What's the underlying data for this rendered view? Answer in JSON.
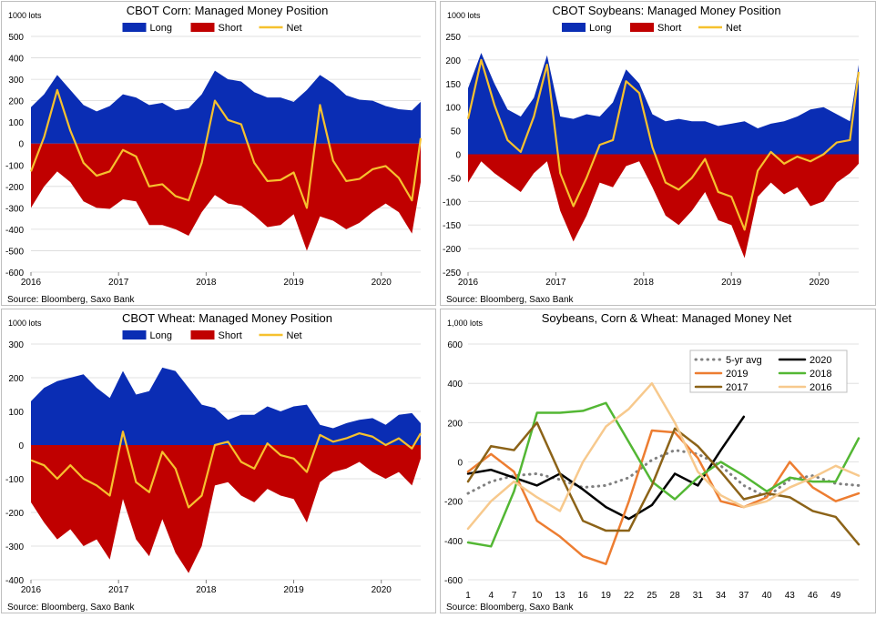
{
  "source_label": "Source: Bloomberg, Saxo Bank",
  "chart_data": [
    {
      "type": "area",
      "title": "CBOT Corn: Managed Money Position",
      "unit_label": "1000 lots",
      "ylim": [
        -600,
        500
      ],
      "yticks": [
        -600,
        -500,
        -400,
        -300,
        -200,
        -100,
        0,
        100,
        200,
        300,
        400,
        500
      ],
      "xlim": [
        2016.0,
        2020.45
      ],
      "xticks": [
        "2016",
        "2017",
        "2018",
        "2019",
        "2020"
      ],
      "legend": [
        "Long",
        "Short",
        "Net"
      ],
      "colors": {
        "long": "#0a2db4",
        "short": "#c00000",
        "net": "#f6c12e"
      },
      "x": [
        2016.0,
        2016.15,
        2016.3,
        2016.45,
        2016.6,
        2016.75,
        2016.9,
        2017.05,
        2017.2,
        2017.35,
        2017.5,
        2017.65,
        2017.8,
        2017.95,
        2018.1,
        2018.25,
        2018.4,
        2018.55,
        2018.7,
        2018.85,
        2019.0,
        2019.15,
        2019.3,
        2019.45,
        2019.6,
        2019.75,
        2019.9,
        2020.05,
        2020.2,
        2020.35,
        2020.45
      ],
      "series": [
        {
          "name": "Long",
          "values": [
            170,
            230,
            320,
            250,
            180,
            150,
            175,
            230,
            215,
            180,
            190,
            155,
            165,
            230,
            340,
            300,
            290,
            240,
            215,
            215,
            195,
            250,
            320,
            280,
            225,
            205,
            200,
            175,
            160,
            155,
            195
          ]
        },
        {
          "name": "Short",
          "values": [
            -300,
            -200,
            -130,
            -180,
            -270,
            -300,
            -305,
            -260,
            -270,
            -380,
            -380,
            -400,
            -430,
            -320,
            -240,
            -280,
            -290,
            -335,
            -390,
            -380,
            -330,
            -500,
            -340,
            -360,
            -400,
            -370,
            -320,
            -280,
            -320,
            -420,
            -180
          ]
        },
        {
          "name": "Net",
          "values": [
            -130,
            30,
            250,
            60,
            -90,
            -150,
            -130,
            -30,
            -60,
            -200,
            -190,
            -245,
            -265,
            -90,
            200,
            110,
            90,
            -90,
            -175,
            -170,
            -135,
            -300,
            180,
            -80,
            -175,
            -165,
            -120,
            -105,
            -160,
            -265,
            25
          ]
        }
      ]
    },
    {
      "type": "area",
      "title": "CBOT Soybeans: Managed Money Position",
      "unit_label": "1000 lots",
      "ylim": [
        -250,
        250
      ],
      "yticks": [
        -250,
        -200,
        -150,
        -100,
        -50,
        0,
        50,
        100,
        150,
        200,
        250
      ],
      "xlim": [
        2016.0,
        2020.45
      ],
      "xticks": [
        "2016",
        "2017",
        "2018",
        "2019",
        "2020"
      ],
      "legend": [
        "Long",
        "Short",
        "Net"
      ],
      "colors": {
        "long": "#0a2db4",
        "short": "#c00000",
        "net": "#f6c12e"
      },
      "x": [
        2016.0,
        2016.15,
        2016.3,
        2016.45,
        2016.6,
        2016.75,
        2016.9,
        2017.05,
        2017.2,
        2017.35,
        2017.5,
        2017.65,
        2017.8,
        2017.95,
        2018.1,
        2018.25,
        2018.4,
        2018.55,
        2018.7,
        2018.85,
        2019.0,
        2019.15,
        2019.3,
        2019.45,
        2019.6,
        2019.75,
        2019.9,
        2020.05,
        2020.2,
        2020.35,
        2020.45
      ],
      "series": [
        {
          "name": "Long",
          "values": [
            140,
            215,
            150,
            95,
            80,
            120,
            210,
            80,
            75,
            85,
            80,
            110,
            180,
            150,
            85,
            70,
            75,
            70,
            70,
            60,
            65,
            70,
            55,
            65,
            70,
            80,
            95,
            100,
            85,
            70,
            190
          ]
        },
        {
          "name": "Short",
          "values": [
            -60,
            -15,
            -40,
            -60,
            -80,
            -40,
            -15,
            -120,
            -185,
            -130,
            -60,
            -70,
            -25,
            -15,
            -70,
            -130,
            -150,
            -120,
            -80,
            -140,
            -150,
            -220,
            -90,
            -60,
            -85,
            -70,
            -110,
            -100,
            -60,
            -40,
            -20
          ]
        },
        {
          "name": "Net",
          "values": [
            75,
            200,
            105,
            30,
            5,
            80,
            190,
            -40,
            -110,
            -50,
            20,
            30,
            155,
            130,
            15,
            -60,
            -75,
            -50,
            -10,
            -80,
            -90,
            -160,
            -35,
            5,
            -20,
            -5,
            -15,
            0,
            25,
            30,
            175
          ]
        }
      ]
    },
    {
      "type": "area",
      "title": "CBOT Wheat: Managed Money Position",
      "unit_label": "1000 lots",
      "ylim": [
        -400,
        300
      ],
      "yticks": [
        -400,
        -300,
        -200,
        -100,
        0,
        100,
        200,
        300
      ],
      "xlim": [
        2016.0,
        2020.45
      ],
      "xticks": [
        "2016",
        "2017",
        "2018",
        "2019",
        "2020"
      ],
      "legend": [
        "Long",
        "Short",
        "Net"
      ],
      "colors": {
        "long": "#0a2db4",
        "short": "#c00000",
        "net": "#f6c12e"
      },
      "x": [
        2016.0,
        2016.15,
        2016.3,
        2016.45,
        2016.6,
        2016.75,
        2016.9,
        2017.05,
        2017.2,
        2017.35,
        2017.5,
        2017.65,
        2017.8,
        2017.95,
        2018.1,
        2018.25,
        2018.4,
        2018.55,
        2018.7,
        2018.85,
        2019.0,
        2019.15,
        2019.3,
        2019.45,
        2019.6,
        2019.75,
        2019.9,
        2020.05,
        2020.2,
        2020.35,
        2020.45
      ],
      "series": [
        {
          "name": "Long",
          "values": [
            130,
            170,
            190,
            200,
            210,
            170,
            140,
            220,
            150,
            160,
            230,
            220,
            170,
            120,
            110,
            75,
            90,
            90,
            115,
            100,
            115,
            120,
            60,
            50,
            65,
            75,
            80,
            60,
            90,
            95,
            65
          ]
        },
        {
          "name": "Short",
          "values": [
            -170,
            -230,
            -280,
            -250,
            -300,
            -280,
            -340,
            -160,
            -280,
            -330,
            -220,
            -320,
            -380,
            -300,
            -120,
            -110,
            -150,
            -170,
            -130,
            -150,
            -160,
            -230,
            -110,
            -80,
            -70,
            -50,
            -80,
            -100,
            -80,
            -120,
            -40
          ]
        },
        {
          "name": "Net",
          "values": [
            -45,
            -60,
            -100,
            -60,
            -100,
            -120,
            -150,
            40,
            -110,
            -140,
            -20,
            -70,
            -185,
            -150,
            0,
            10,
            -50,
            -70,
            5,
            -30,
            -40,
            -80,
            30,
            10,
            20,
            35,
            25,
            0,
            20,
            -10,
            35
          ]
        }
      ]
    },
    {
      "type": "line",
      "title": "Soybeans, Corn & Wheat: Managed Money Net",
      "unit_label": "1,000 lots",
      "ylim": [
        -600,
        600
      ],
      "yticks": [
        -600,
        -400,
        -200,
        0,
        200,
        400,
        600
      ],
      "xlim": [
        1,
        52
      ],
      "xticks": [
        "1",
        "4",
        "7",
        "10",
        "13",
        "16",
        "19",
        "22",
        "25",
        "28",
        "31",
        "34",
        "37",
        "40",
        "43",
        "46",
        "49"
      ],
      "x": [
        1,
        4,
        7,
        10,
        13,
        16,
        19,
        22,
        25,
        28,
        31,
        34,
        37,
        40,
        43,
        46,
        49,
        52
      ],
      "series": [
        {
          "name": "5-yr avg",
          "color": "#808080",
          "dashed": true,
          "values": [
            -160,
            -100,
            -70,
            -60,
            -90,
            -130,
            -120,
            -80,
            10,
            60,
            40,
            -20,
            -120,
            -180,
            -90,
            -70,
            -110,
            -120
          ]
        },
        {
          "name": "2020",
          "color": "#000000",
          "values": [
            -60,
            -40,
            -80,
            -120,
            -60,
            -140,
            -230,
            -290,
            -220,
            -60,
            -120,
            60,
            230,
            null,
            null,
            null,
            null,
            null
          ]
        },
        {
          "name": "2019",
          "color": "#ed7d31",
          "values": [
            -50,
            40,
            -50,
            -300,
            -380,
            -480,
            -520,
            -200,
            160,
            150,
            20,
            -200,
            -230,
            -180,
            0,
            -130,
            -200,
            -160
          ]
        },
        {
          "name": "2018",
          "color": "#53b734",
          "values": [
            -410,
            -430,
            -150,
            250,
            250,
            260,
            300,
            100,
            -100,
            -190,
            -80,
            0,
            -70,
            -150,
            -80,
            -100,
            -100,
            120
          ]
        },
        {
          "name": "2017",
          "color": "#8c6318",
          "values": [
            -100,
            80,
            60,
            200,
            -60,
            -300,
            -350,
            -350,
            -120,
            170,
            80,
            -50,
            -190,
            -160,
            -180,
            -250,
            -280,
            -420
          ]
        },
        {
          "name": "2016",
          "color": "#f7c98d",
          "values": [
            -340,
            -200,
            -100,
            -180,
            -250,
            0,
            180,
            270,
            400,
            200,
            -50,
            -170,
            -230,
            -200,
            -130,
            -80,
            -20,
            -70
          ]
        }
      ]
    }
  ]
}
